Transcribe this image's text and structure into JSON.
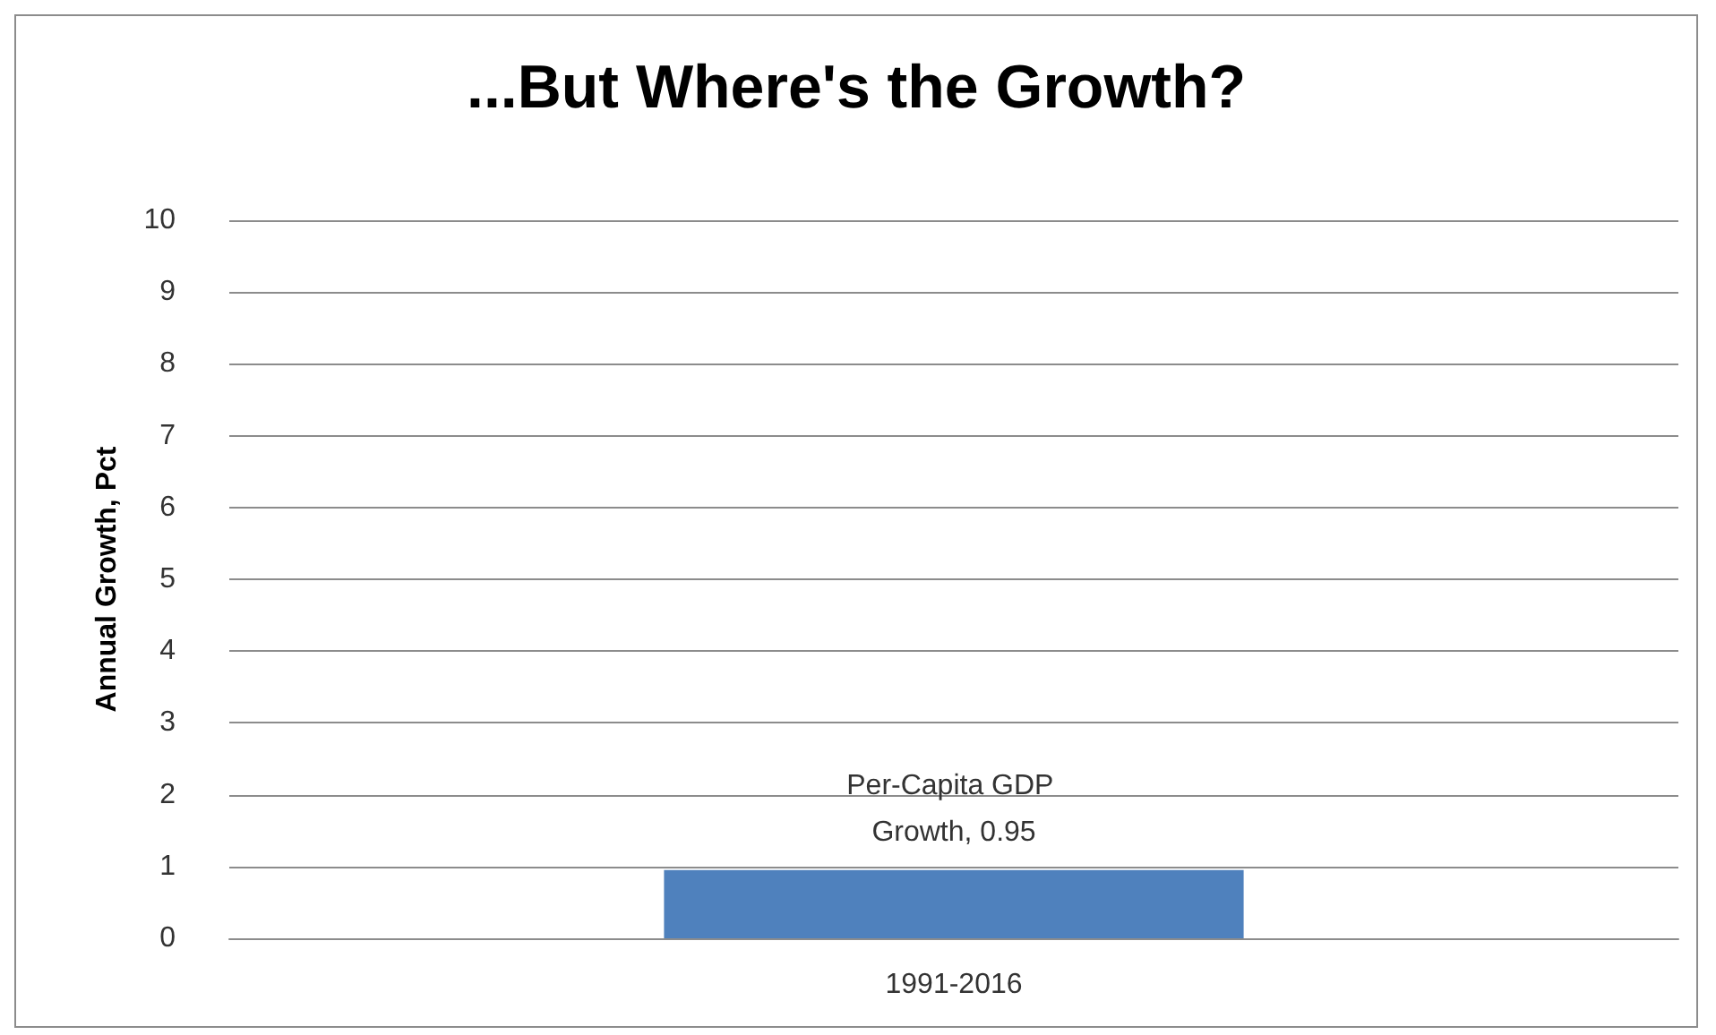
{
  "chart_data": {
    "type": "bar",
    "title": "...But Where's the Growth?",
    "ylabel": "Annual Growth, Pct",
    "categories": [
      "1991-2016"
    ],
    "series": [
      {
        "color": "#4f81bd",
        "values": [
          0.95
        ],
        "value_labels": [
          "Per-Capita GDP Growth, 0.95"
        ]
      }
    ],
    "ylim": [
      0,
      10
    ],
    "yticks": [
      0,
      1,
      2,
      3,
      4,
      5,
      6,
      7,
      8,
      9,
      10
    ],
    "grid": "y"
  }
}
